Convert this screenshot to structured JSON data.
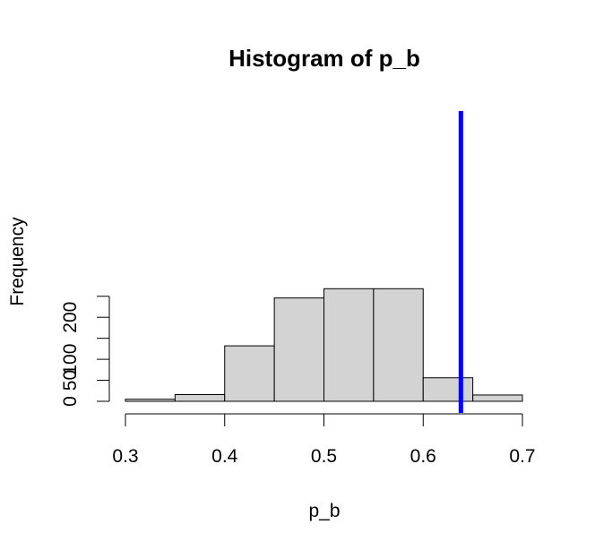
{
  "chart_data": {
    "type": "bar",
    "title": "Histogram of p_b",
    "xlabel": "p_b",
    "ylabel": "Frequency",
    "bins": [
      {
        "start": 0.3,
        "end": 0.35,
        "count": 5
      },
      {
        "start": 0.35,
        "end": 0.4,
        "count": 16
      },
      {
        "start": 0.4,
        "end": 0.45,
        "count": 132
      },
      {
        "start": 0.45,
        "end": 0.5,
        "count": 246
      },
      {
        "start": 0.5,
        "end": 0.55,
        "count": 268
      },
      {
        "start": 0.55,
        "end": 0.6,
        "count": 268
      },
      {
        "start": 0.6,
        "end": 0.65,
        "count": 56
      },
      {
        "start": 0.65,
        "end": 0.7,
        "count": 15
      }
    ],
    "xlim": [
      0.3,
      0.7
    ],
    "ylim": [
      0,
      250
    ],
    "xticks": [
      0.3,
      0.4,
      0.5,
      0.6,
      0.7
    ],
    "xtick_labels": [
      "0.3",
      "0.4",
      "0.5",
      "0.6",
      "0.7"
    ],
    "yticks": [
      0,
      50,
      100,
      150,
      200,
      250
    ],
    "ytick_labels": [
      "0",
      "50",
      "100",
      "",
      "200",
      ""
    ],
    "grid": false,
    "reference_line": {
      "x": 0.638,
      "color": "#0000ff"
    },
    "bar_color": "#d3d3d3",
    "edge_color": "#000000"
  }
}
